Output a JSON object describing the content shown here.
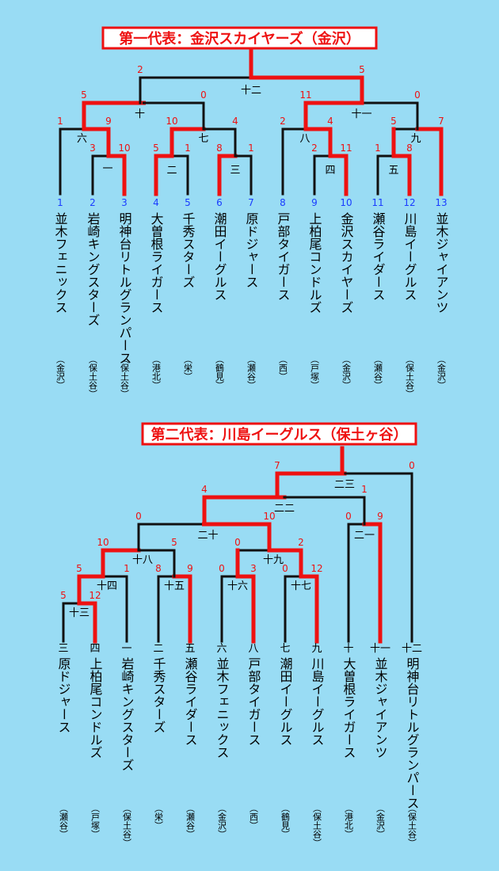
{
  "colors": {
    "background": "#99dcf4",
    "win_line": "#ee1111",
    "lose_line": "#111111",
    "score_text": "#ee1111",
    "seed_text": "#1a3cff",
    "title_border": "#ee1111",
    "title_fill": "#ffffff"
  },
  "bracket1": {
    "title": "第一代表：金沢スカイヤーズ（金沢）",
    "teams": [
      {
        "seed": "1",
        "name": "並木フェニックス",
        "area": "（金沢）"
      },
      {
        "seed": "2",
        "name": "岩崎キングスターズ",
        "area": "（保土谷）"
      },
      {
        "seed": "3",
        "name": "明神台リトルグランパース",
        "area": "（保土谷）"
      },
      {
        "seed": "4",
        "name": "大曽根ライガース",
        "area": "（港北）"
      },
      {
        "seed": "5",
        "name": "千秀スターズ",
        "area": "（栄）"
      },
      {
        "seed": "6",
        "name": "潮田イーグルス",
        "area": "（鶴見）"
      },
      {
        "seed": "7",
        "name": "原ドジャース",
        "area": "（瀬谷）"
      },
      {
        "seed": "8",
        "name": "戸部タイガース",
        "area": "（西）"
      },
      {
        "seed": "9",
        "name": "上柏尾コンドルズ",
        "area": "（戸塚）"
      },
      {
        "seed": "10",
        "name": "金沢スカイヤーズ",
        "area": "（金沢）"
      },
      {
        "seed": "11",
        "name": "瀬谷ライダース",
        "area": "（瀬谷）"
      },
      {
        "seed": "12",
        "name": "川島イーグルス",
        "area": "（保土谷）"
      },
      {
        "seed": "13",
        "name": "並木ジャイアンツ",
        "area": "（金沢）"
      }
    ],
    "matches": [
      {
        "label": "一",
        "score_left": "3",
        "score_right": "10"
      },
      {
        "label": "二",
        "score_left": "5",
        "score_right": "1"
      },
      {
        "label": "三",
        "score_left": "8",
        "score_right": "1"
      },
      {
        "label": "四",
        "score_left": "2",
        "score_right": "11"
      },
      {
        "label": "五",
        "score_left": "1",
        "score_right": "8"
      },
      {
        "label": "六",
        "score_left": "1",
        "score_right": "9"
      },
      {
        "label": "七",
        "score_left": "10",
        "score_right": "4"
      },
      {
        "label": "八",
        "score_left": "2",
        "score_right": "4"
      },
      {
        "label": "九",
        "score_left": "5",
        "score_right": "7"
      },
      {
        "label": "十",
        "score_left": "5",
        "score_right": "0"
      },
      {
        "label": "十一",
        "score_left": "11",
        "score_right": "0"
      },
      {
        "label": "十二",
        "score_left": "2",
        "score_right": "5"
      }
    ]
  },
  "bracket2": {
    "title": "第二代表：川島イーグルス（保土ヶ谷）",
    "teams": [
      {
        "seed": "三",
        "name": "原ドジャース",
        "area": "（瀬谷）"
      },
      {
        "seed": "四",
        "name": "上柏尾コンドルズ",
        "area": "（戸塚）"
      },
      {
        "seed": "一",
        "name": "岩崎キングスターズ",
        "area": "（保土谷）"
      },
      {
        "seed": "二",
        "name": "千秀スターズ",
        "area": "（栄）"
      },
      {
        "seed": "五",
        "name": "瀬谷ライダース",
        "area": "（瀬谷）"
      },
      {
        "seed": "六",
        "name": "並木フェニックス",
        "area": "（金沢）"
      },
      {
        "seed": "八",
        "name": "戸部タイガース",
        "area": "（西）"
      },
      {
        "seed": "七",
        "name": "潮田イーグルス",
        "area": "（鶴見）"
      },
      {
        "seed": "九",
        "name": "川島イーグルス",
        "area": "（保土谷）"
      },
      {
        "seed": "十",
        "name": "大曽根ライガース",
        "area": "（港北）"
      },
      {
        "seed": "十一",
        "name": "並木ジャイアンツ",
        "area": "（金沢）"
      },
      {
        "seed": "十二",
        "name": "明神台リトルグランパース",
        "area": "（保土谷）"
      }
    ],
    "matches": [
      {
        "label": "十三",
        "score_left": "5",
        "score_right": "12"
      },
      {
        "label": "十四",
        "score_left": "5",
        "score_right": "1"
      },
      {
        "label": "十五",
        "score_left": "8",
        "score_right": "9"
      },
      {
        "label": "十六",
        "score_left": "0",
        "score_right": "3"
      },
      {
        "label": "十七",
        "score_left": "0",
        "score_right": "12"
      },
      {
        "label": "十八",
        "score_left": "10",
        "score_right": "5"
      },
      {
        "label": "十九",
        "score_left": "0",
        "score_right": "2"
      },
      {
        "label": "二十",
        "score_left": "0",
        "score_right": "10"
      },
      {
        "label": "二一",
        "score_left": "0",
        "score_right": "9"
      },
      {
        "label": "二二",
        "score_left": "4",
        "score_right": "1"
      },
      {
        "label": "二三",
        "score_left": "7",
        "score_right": "0"
      }
    ]
  }
}
